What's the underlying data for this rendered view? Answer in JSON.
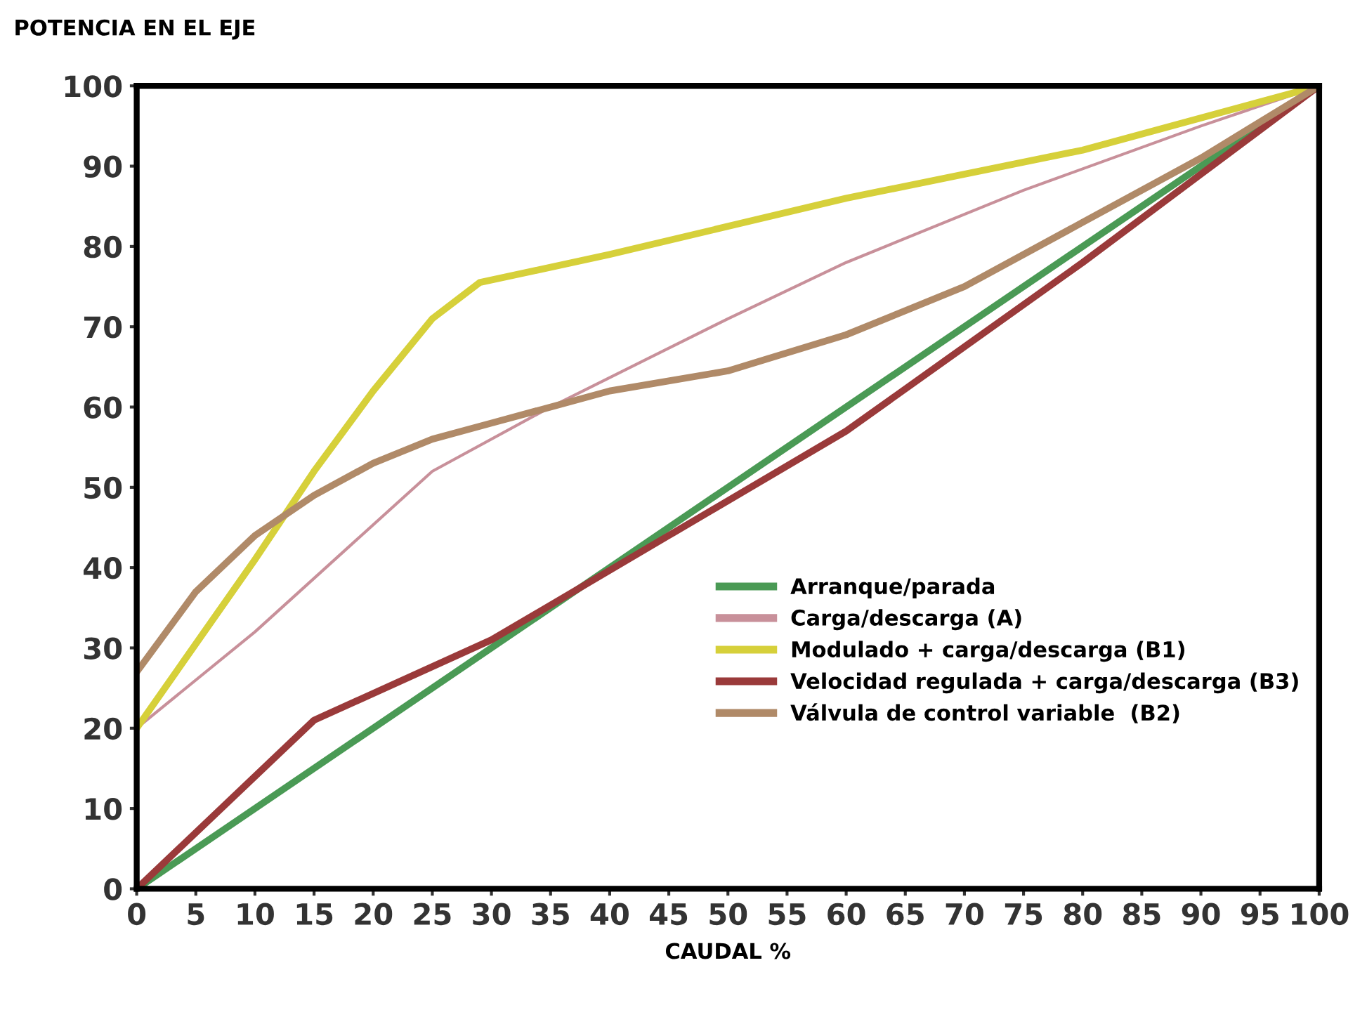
{
  "chart_data": {
    "type": "line",
    "title": "POTENCIA EN EL EJE",
    "xlabel": "CAUDAL %",
    "xlim": [
      0,
      100
    ],
    "ylim": [
      0,
      100
    ],
    "xticks": [
      0,
      5,
      10,
      15,
      20,
      25,
      30,
      35,
      40,
      45,
      50,
      55,
      60,
      65,
      70,
      75,
      80,
      85,
      90,
      95,
      100
    ],
    "yticks": [
      0,
      10,
      20,
      30,
      40,
      50,
      60,
      70,
      80,
      90,
      100
    ],
    "grid": false,
    "legend": "lower right",
    "marker": "none",
    "line_style": "solid",
    "series": [
      {
        "name": "Arranque/parada",
        "color": "#4a9a55",
        "x": [
          0,
          100
        ],
        "values": [
          0,
          100
        ]
      },
      {
        "name": "Carga/descarga (A)",
        "color": "#c8909a",
        "x": [
          0,
          10,
          25,
          35,
          50,
          60,
          75,
          90,
          100
        ],
        "values": [
          20,
          32,
          52,
          60,
          71,
          78,
          87,
          95,
          100
        ]
      },
      {
        "name": "Modulado + carga/descarga (B1)",
        "color": "#d6d03a",
        "x": [
          0,
          10,
          15,
          20,
          25,
          29,
          40,
          60,
          80,
          100
        ],
        "values": [
          20,
          41,
          52,
          62,
          71,
          75.5,
          79,
          86,
          92,
          100
        ]
      },
      {
        "name": "Velocidad regulada + carga/descarga (B3)",
        "color": "#9a3a3a",
        "x": [
          0,
          15,
          30,
          45,
          60,
          80,
          100
        ],
        "values": [
          0,
          21,
          31,
          44,
          57,
          78,
          100
        ]
      },
      {
        "name": "Válvula de control variable  (B2)",
        "color": "#b08a68",
        "x": [
          0,
          5,
          10,
          15,
          20,
          25,
          30,
          40,
          50,
          60,
          70,
          80,
          90,
          100
        ],
        "values": [
          27,
          37,
          44,
          49,
          53,
          56,
          58,
          62,
          64.5,
          69,
          75,
          83,
          91,
          100
        ]
      }
    ]
  }
}
